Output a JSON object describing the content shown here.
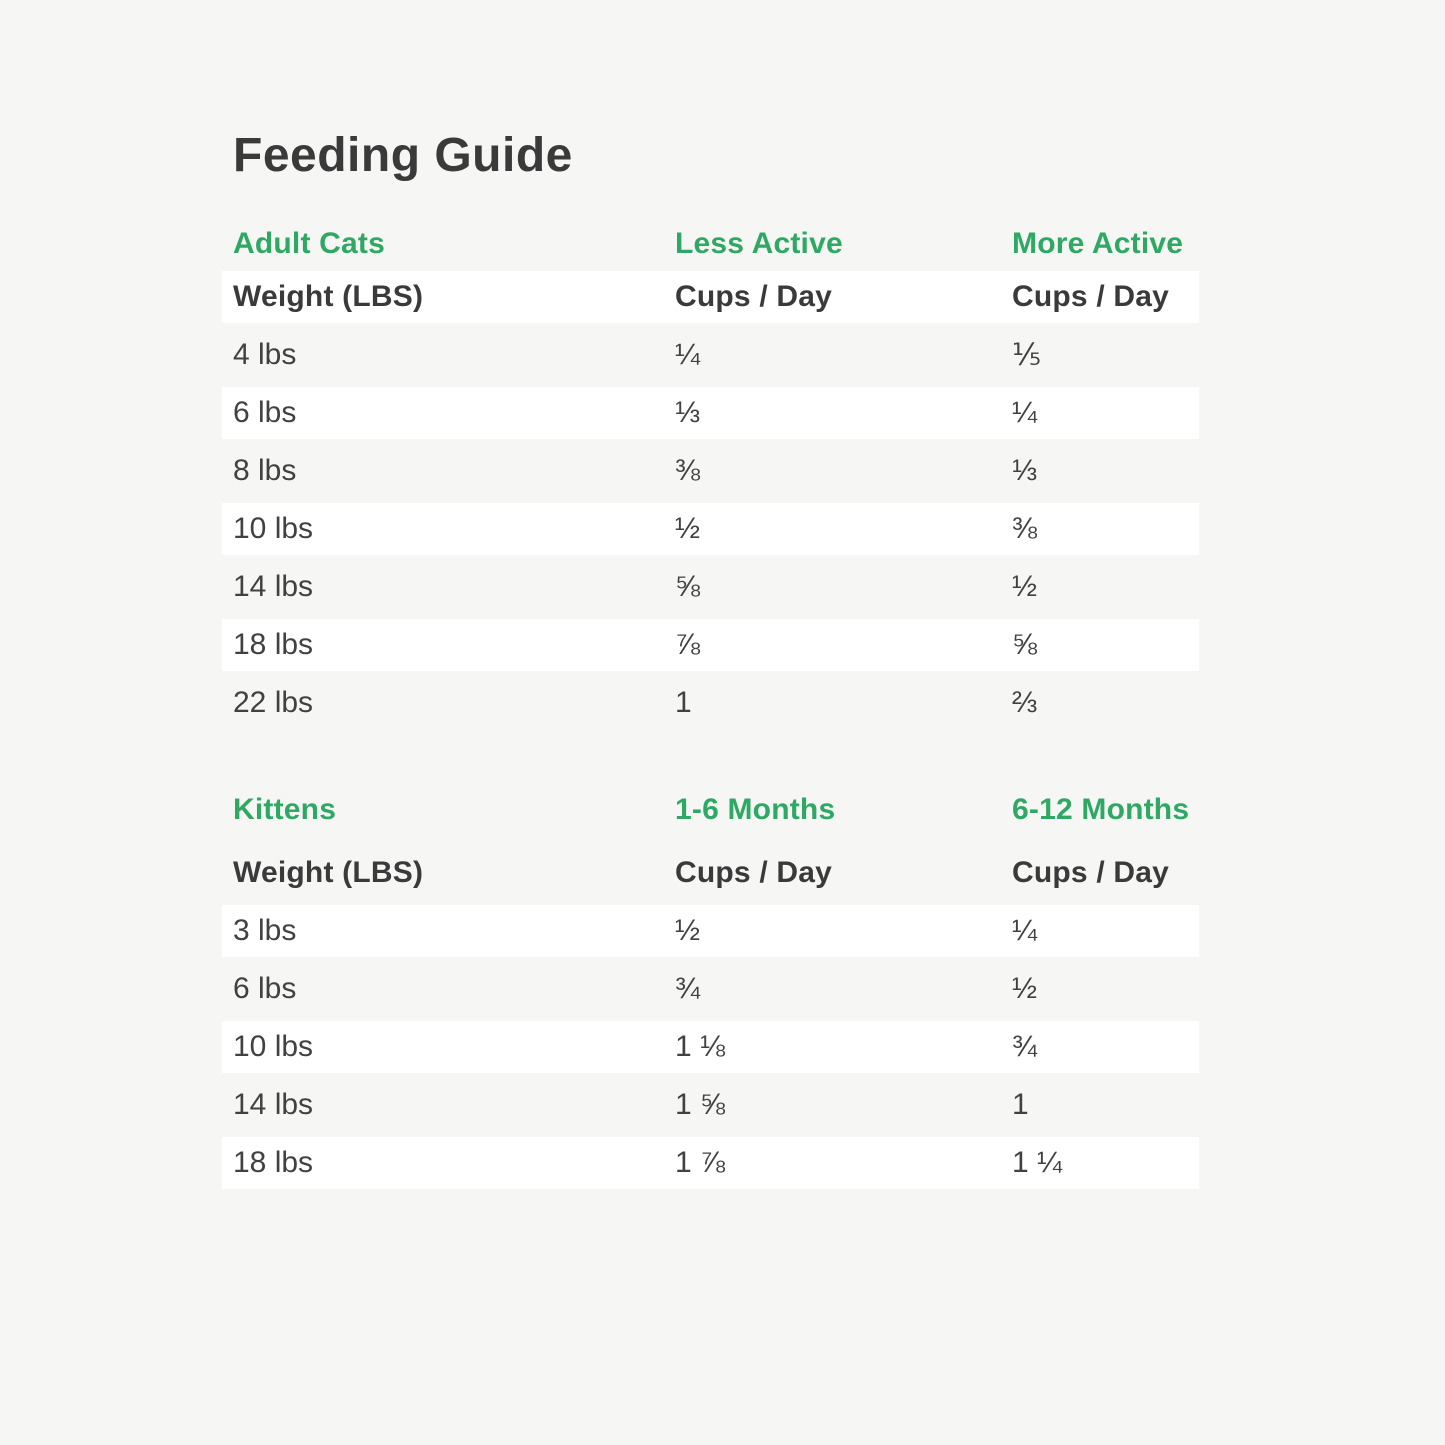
{
  "title": "Feeding Guide",
  "colors": {
    "background": "#f6f6f5",
    "row_white": "#ffffff",
    "heading_green": "#2ea863",
    "text_dark": "#3a3a3a"
  },
  "tables": [
    {
      "section_label": "Adult Cats",
      "col2_label": "Less Active",
      "col3_label": "More Active",
      "header": {
        "col1": "Weight (LBS)",
        "col2": "Cups / Day",
        "col3": "Cups / Day"
      },
      "rows": [
        {
          "weight": "4 lbs",
          "col2": "¼",
          "col3": "⅕"
        },
        {
          "weight": "6 lbs",
          "col2": "⅓",
          "col3": "¼"
        },
        {
          "weight": "8 lbs",
          "col2": "⅜",
          "col3": "⅓"
        },
        {
          "weight": "10 lbs",
          "col2": "½",
          "col3": "⅜"
        },
        {
          "weight": "14 lbs",
          "col2": "⅝",
          "col3": "½"
        },
        {
          "weight": "18 lbs",
          "col2": "⅞",
          "col3": "⅝"
        },
        {
          "weight": "22 lbs",
          "col2": "1",
          "col3": "⅔"
        }
      ]
    },
    {
      "section_label": "Kittens",
      "col2_label": "1-6 Months",
      "col3_label": "6-12 Months",
      "header": {
        "col1": "Weight (LBS)",
        "col2": "Cups / Day",
        "col3": "Cups / Day"
      },
      "rows": [
        {
          "weight": "3 lbs",
          "col2": "½",
          "col3": "¼"
        },
        {
          "weight": "6 lbs",
          "col2": "¾",
          "col3": "½"
        },
        {
          "weight": "10 lbs",
          "col2": "1 ⅛",
          "col3": "¾"
        },
        {
          "weight": "14 lbs",
          "col2": "1 ⅝",
          "col3": "1"
        },
        {
          "weight": "18 lbs",
          "col2": "1 ⅞",
          "col3": "1 ¼"
        }
      ]
    }
  ]
}
